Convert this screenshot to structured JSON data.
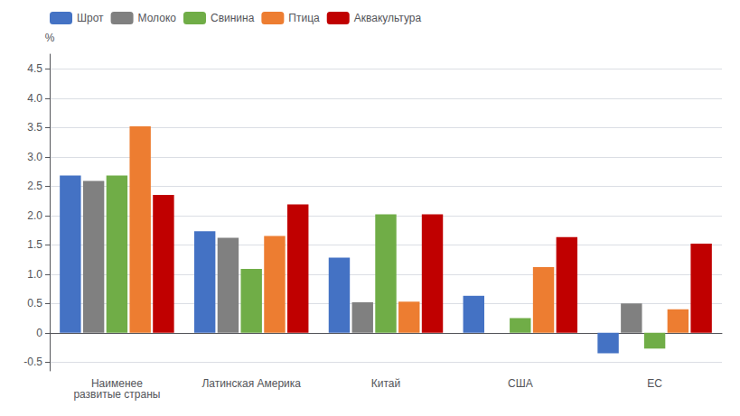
{
  "chart_data": {
    "type": "bar",
    "categories": [
      "Наименее\nразвитые страны",
      "Латинская Америка",
      "Китай",
      "США",
      "ЕС"
    ],
    "series": [
      {
        "name": "Шрот",
        "color": "#4472c4",
        "values": [
          2.68,
          1.73,
          1.28,
          0.63,
          -0.35
        ]
      },
      {
        "name": "Молоко",
        "color": "#808080",
        "values": [
          2.59,
          1.62,
          0.52,
          0.0,
          0.5
        ]
      },
      {
        "name": "Свинина",
        "color": "#70ad47",
        "values": [
          2.68,
          1.09,
          2.02,
          0.25,
          -0.27
        ]
      },
      {
        "name": "Птица",
        "color": "#ed7d31",
        "values": [
          3.52,
          1.65,
          0.53,
          1.12,
          0.4
        ]
      },
      {
        "name": "Аквакультура",
        "color": "#c00000",
        "values": [
          2.35,
          2.19,
          2.02,
          1.63,
          1.52
        ]
      }
    ],
    "ylabel": "%",
    "ylim": [
      -0.65,
      4.75
    ],
    "yticks": [
      -0.5,
      0,
      0.5,
      {
        "value": 1,
        "label": "1.0"
      },
      1.5,
      {
        "value": 2,
        "label": "2.0"
      },
      2.5,
      {
        "value": 3,
        "label": "3.0"
      },
      3.5,
      {
        "value": 4,
        "label": "4.0"
      },
      4.5
    ],
    "grid": true,
    "legend": "upper left"
  }
}
